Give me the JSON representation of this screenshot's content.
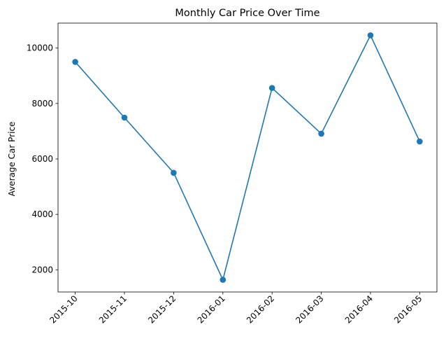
{
  "chart_data": {
    "type": "line",
    "title": "Monthly Car Price Over Time",
    "xlabel": "",
    "ylabel": "Average Car Price",
    "x": [
      "2015-10",
      "2015-11",
      "2015-12",
      "2016-01",
      "2016-02",
      "2016-03",
      "2016-04",
      "2016-05"
    ],
    "series": [
      {
        "values": [
          9500,
          7490,
          5500,
          1640,
          8560,
          6910,
          10460,
          6630
        ],
        "color": "#1f77b4",
        "marker": "circle"
      }
    ],
    "yticks": [
      2000,
      4000,
      6000,
      8000,
      10000
    ],
    "ylim": [
      1200,
      10900
    ],
    "grid": false,
    "legend": "none"
  }
}
